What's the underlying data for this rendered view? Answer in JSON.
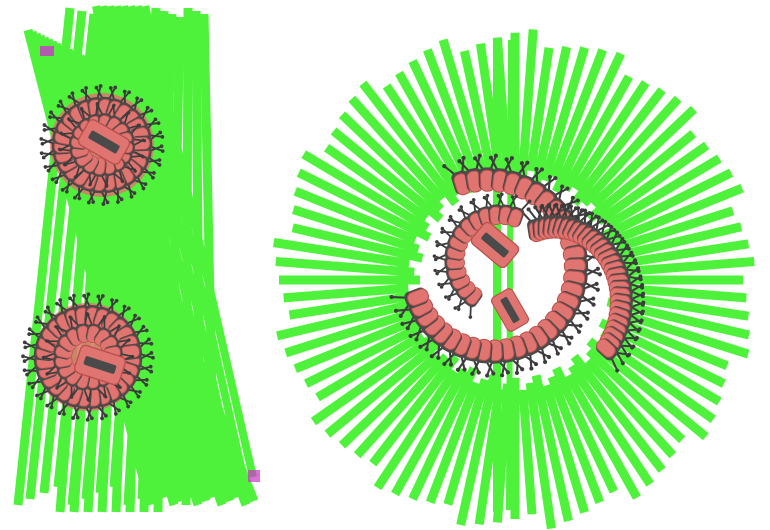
{
  "colors": {
    "background": "#ffffff",
    "ray": "#4ef23a",
    "ray_edge": "#3ac82a",
    "body": "#e07470",
    "body_edge": "#b8504c",
    "shadow": "#4a4a4a",
    "legs": "#3c3c3c",
    "marker": "#cc33cc"
  },
  "scene": {
    "panels": [
      {
        "name": "left-panel",
        "clusters": [
          "top-left-cluster",
          "bottom-left-cluster"
        ]
      },
      {
        "name": "right-panel",
        "clusters": [
          "radial-burst-cluster"
        ]
      }
    ]
  }
}
